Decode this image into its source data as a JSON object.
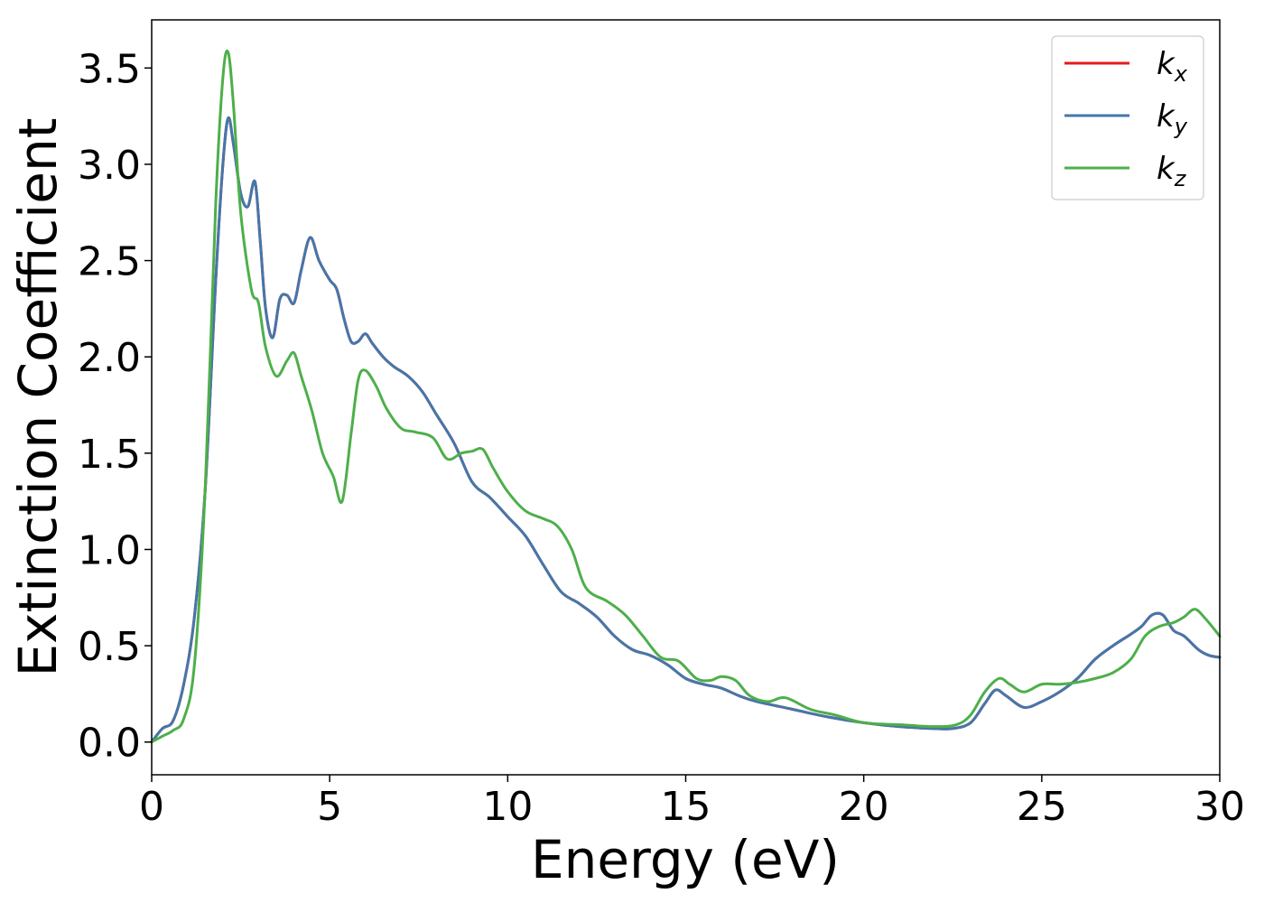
{
  "chart_data": {
    "type": "line",
    "title": "",
    "xlabel": "Energy (eV)",
    "ylabel": "Extinction Coefficient",
    "xlim": [
      0,
      30
    ],
    "ylim": [
      -0.17,
      3.75
    ],
    "xticks": [
      "0",
      "5",
      "10",
      "15",
      "20",
      "25",
      "30"
    ],
    "yticks": [
      "0.0",
      "0.5",
      "1.0",
      "1.5",
      "2.0",
      "2.5",
      "3.0",
      "3.5"
    ],
    "grid": false,
    "legend_position": "top-right",
    "series": [
      {
        "name": "k",
        "subscript": "x",
        "color": "#e41a1c",
        "x": [
          0,
          0.3,
          0.6,
          0.9,
          1.2,
          1.5,
          1.8,
          2.0,
          2.15,
          2.3,
          2.5,
          2.7,
          2.9,
          3.05,
          3.2,
          3.4,
          3.6,
          3.8,
          4.0,
          4.2,
          4.45,
          4.7,
          5.0,
          5.2,
          5.4,
          5.6,
          5.8,
          6.0,
          6.2,
          6.5,
          6.8,
          7.2,
          7.6,
          8.0,
          8.5,
          9.0,
          9.5,
          10.0,
          10.5,
          11.0,
          11.5,
          12.0,
          12.5,
          13.0,
          13.5,
          14.0,
          14.5,
          15.0,
          15.5,
          16.0,
          16.5,
          17.0,
          18.0,
          19.0,
          20.0,
          21.0,
          22.0,
          22.5,
          23.0,
          23.4,
          23.7,
          24.0,
          24.5,
          25.0,
          25.5,
          26.0,
          26.5,
          27.0,
          27.5,
          27.8,
          28.1,
          28.4,
          28.7,
          29.0,
          29.4,
          29.7,
          30.0
        ],
        "y": [
          0.0,
          0.07,
          0.11,
          0.3,
          0.65,
          1.3,
          2.4,
          3.0,
          3.24,
          3.1,
          2.85,
          2.78,
          2.91,
          2.6,
          2.25,
          2.1,
          2.3,
          2.32,
          2.28,
          2.45,
          2.62,
          2.5,
          2.4,
          2.35,
          2.2,
          2.08,
          2.08,
          2.12,
          2.07,
          2.0,
          1.95,
          1.9,
          1.82,
          1.7,
          1.55,
          1.35,
          1.27,
          1.17,
          1.07,
          0.92,
          0.78,
          0.72,
          0.65,
          0.55,
          0.48,
          0.45,
          0.4,
          0.33,
          0.3,
          0.28,
          0.24,
          0.21,
          0.17,
          0.13,
          0.1,
          0.08,
          0.07,
          0.07,
          0.1,
          0.2,
          0.27,
          0.24,
          0.18,
          0.21,
          0.26,
          0.33,
          0.43,
          0.5,
          0.56,
          0.6,
          0.66,
          0.66,
          0.58,
          0.55,
          0.48,
          0.45,
          0.44
        ]
      },
      {
        "name": "k",
        "subscript": "y",
        "color": "#4477aa",
        "x": [
          0,
          0.3,
          0.6,
          0.9,
          1.2,
          1.5,
          1.8,
          2.0,
          2.15,
          2.3,
          2.5,
          2.7,
          2.9,
          3.05,
          3.2,
          3.4,
          3.6,
          3.8,
          4.0,
          4.2,
          4.45,
          4.7,
          5.0,
          5.2,
          5.4,
          5.6,
          5.8,
          6.0,
          6.2,
          6.5,
          6.8,
          7.2,
          7.6,
          8.0,
          8.5,
          9.0,
          9.5,
          10.0,
          10.5,
          11.0,
          11.5,
          12.0,
          12.5,
          13.0,
          13.5,
          14.0,
          14.5,
          15.0,
          15.5,
          16.0,
          16.5,
          17.0,
          18.0,
          19.0,
          20.0,
          21.0,
          22.0,
          22.5,
          23.0,
          23.4,
          23.7,
          24.0,
          24.5,
          25.0,
          25.5,
          26.0,
          26.5,
          27.0,
          27.5,
          27.8,
          28.1,
          28.4,
          28.7,
          29.0,
          29.4,
          29.7,
          30.0
        ],
        "y": [
          0.0,
          0.07,
          0.11,
          0.3,
          0.65,
          1.3,
          2.4,
          3.0,
          3.24,
          3.1,
          2.85,
          2.78,
          2.91,
          2.6,
          2.25,
          2.1,
          2.3,
          2.32,
          2.28,
          2.45,
          2.62,
          2.5,
          2.4,
          2.35,
          2.2,
          2.08,
          2.08,
          2.12,
          2.07,
          2.0,
          1.95,
          1.9,
          1.82,
          1.7,
          1.55,
          1.35,
          1.27,
          1.17,
          1.07,
          0.92,
          0.78,
          0.72,
          0.65,
          0.55,
          0.48,
          0.45,
          0.4,
          0.33,
          0.3,
          0.28,
          0.24,
          0.21,
          0.17,
          0.13,
          0.1,
          0.08,
          0.07,
          0.07,
          0.1,
          0.2,
          0.27,
          0.24,
          0.18,
          0.21,
          0.26,
          0.33,
          0.43,
          0.5,
          0.56,
          0.6,
          0.66,
          0.66,
          0.58,
          0.55,
          0.48,
          0.45,
          0.44
        ]
      },
      {
        "name": "k",
        "subscript": "z",
        "color": "#4daf4a",
        "x": [
          0,
          0.3,
          0.6,
          0.9,
          1.2,
          1.5,
          1.8,
          2.0,
          2.15,
          2.3,
          2.5,
          2.8,
          3.0,
          3.2,
          3.5,
          3.8,
          4.0,
          4.2,
          4.5,
          4.8,
          5.1,
          5.35,
          5.6,
          5.8,
          6.0,
          6.3,
          6.6,
          7.0,
          7.4,
          7.9,
          8.3,
          8.7,
          9.0,
          9.3,
          9.6,
          10.0,
          10.5,
          11.0,
          11.4,
          11.8,
          12.2,
          12.8,
          13.3,
          13.8,
          14.3,
          14.8,
          15.3,
          15.7,
          16.0,
          16.4,
          16.8,
          17.3,
          17.8,
          18.5,
          19.2,
          20.0,
          21.0,
          22.0,
          22.6,
          23.0,
          23.4,
          23.8,
          24.1,
          24.5,
          25.0,
          25.5,
          26.0,
          26.5,
          27.0,
          27.5,
          27.9,
          28.3,
          28.7,
          29.0,
          29.3,
          29.6,
          30.0
        ],
        "y": [
          0.0,
          0.03,
          0.06,
          0.12,
          0.4,
          1.3,
          2.8,
          3.45,
          3.58,
          3.3,
          2.75,
          2.35,
          2.28,
          2.05,
          1.9,
          1.98,
          2.02,
          1.9,
          1.72,
          1.5,
          1.38,
          1.25,
          1.6,
          1.88,
          1.93,
          1.85,
          1.73,
          1.63,
          1.61,
          1.58,
          1.47,
          1.5,
          1.51,
          1.52,
          1.42,
          1.3,
          1.2,
          1.16,
          1.12,
          1.0,
          0.8,
          0.73,
          0.66,
          0.55,
          0.44,
          0.42,
          0.33,
          0.32,
          0.34,
          0.32,
          0.24,
          0.21,
          0.23,
          0.17,
          0.14,
          0.1,
          0.09,
          0.08,
          0.09,
          0.14,
          0.26,
          0.33,
          0.3,
          0.26,
          0.3,
          0.3,
          0.31,
          0.33,
          0.36,
          0.43,
          0.55,
          0.6,
          0.62,
          0.65,
          0.69,
          0.64,
          0.55
        ]
      }
    ]
  }
}
